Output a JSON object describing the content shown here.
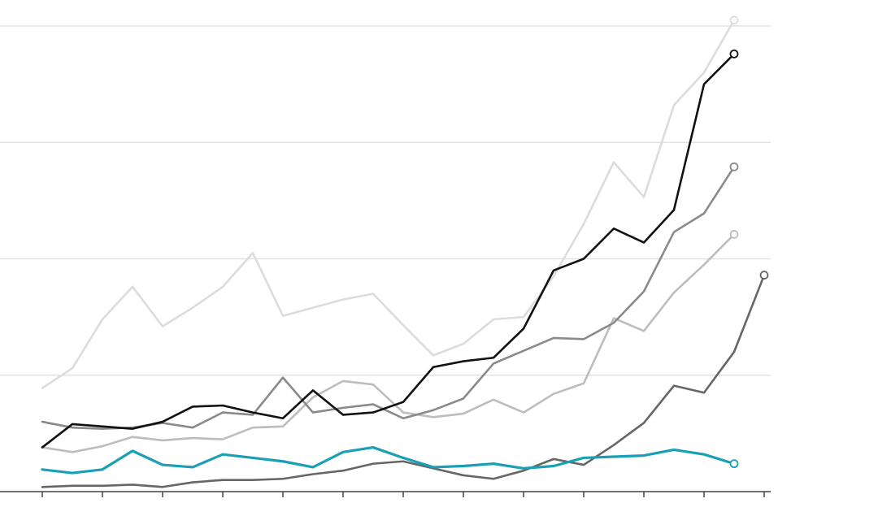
{
  "chart_data": {
    "type": "line",
    "x": [
      0,
      1,
      2,
      3,
      4,
      5,
      6,
      7,
      8,
      9,
      10,
      11,
      12,
      13,
      14,
      15,
      16,
      17,
      18,
      19,
      20,
      21,
      22,
      23,
      24
    ],
    "xlim": [
      0,
      24
    ],
    "xticks": [
      0,
      2,
      4,
      6,
      8,
      10,
      12,
      14,
      16,
      18,
      20,
      22,
      24
    ],
    "ylim": [
      0,
      4.2
    ],
    "yticks": [
      0,
      1,
      2,
      3,
      4
    ],
    "grid": true,
    "series": [
      {
        "color": "#dcdcdc",
        "values": [
          0.89,
          1.06,
          1.48,
          1.76,
          1.42,
          1.58,
          1.76,
          2.05,
          1.51,
          1.58,
          1.65,
          1.7,
          1.43,
          1.17,
          1.27,
          1.48,
          1.5,
          1.85,
          2.3,
          2.83,
          2.53,
          3.32,
          3.6,
          4.05,
          null
        ]
      },
      {
        "color": "#bdbdbd",
        "values": [
          0.38,
          0.34,
          0.39,
          0.47,
          0.44,
          0.46,
          0.45,
          0.55,
          0.56,
          0.81,
          0.95,
          0.92,
          0.68,
          0.64,
          0.67,
          0.79,
          0.68,
          0.84,
          0.93,
          1.49,
          1.38,
          1.71,
          1.95,
          2.21,
          null
        ]
      },
      {
        "color": "#8a8a8a",
        "values": [
          0.6,
          0.55,
          0.54,
          0.55,
          0.59,
          0.55,
          0.68,
          0.66,
          0.98,
          0.68,
          0.72,
          0.75,
          0.63,
          0.7,
          0.8,
          1.1,
          1.21,
          1.32,
          1.31,
          1.45,
          1.72,
          2.23,
          2.39,
          2.79,
          null
        ]
      },
      {
        "color": "#666666",
        "values": [
          0.04,
          0.05,
          0.05,
          0.06,
          0.04,
          0.08,
          0.1,
          0.1,
          0.11,
          0.15,
          0.18,
          0.24,
          0.26,
          0.2,
          0.14,
          0.11,
          0.18,
          0.28,
          0.23,
          0.4,
          0.59,
          0.91,
          0.85,
          1.2,
          1.86
        ]
      },
      {
        "color": "#111111",
        "values": [
          0.38,
          0.58,
          0.56,
          0.54,
          0.6,
          0.73,
          0.74,
          0.68,
          0.63,
          0.87,
          0.66,
          0.68,
          0.77,
          1.07,
          1.12,
          1.15,
          1.4,
          1.9,
          2.0,
          2.26,
          2.14,
          2.42,
          3.5,
          3.76,
          null
        ]
      },
      {
        "color": "#1a9fb5",
        "values": [
          0.19,
          0.16,
          0.19,
          0.35,
          0.23,
          0.21,
          0.32,
          0.29,
          0.26,
          0.21,
          0.34,
          0.38,
          0.29,
          0.21,
          0.22,
          0.24,
          0.2,
          0.22,
          0.29,
          0.3,
          0.31,
          0.36,
          0.32,
          0.24,
          null
        ]
      }
    ]
  }
}
